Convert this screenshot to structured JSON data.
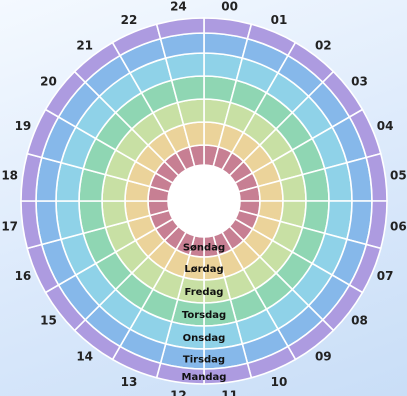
{
  "diagram": {
    "hour_labels": [
      "24",
      "00",
      "01",
      "02",
      "03",
      "04",
      "05",
      "06",
      "07",
      "08",
      "09",
      "10",
      "11",
      "12",
      "13",
      "14",
      "15",
      "16",
      "17",
      "18",
      "19",
      "20",
      "21",
      "22"
    ],
    "day_labels": [
      "Søndag",
      "Lørdag",
      "Fredag",
      "Torsdag",
      "Onsdag",
      "Tirsdag",
      "Mandag"
    ],
    "ring_colors": [
      "#c77f93",
      "#ebd39a",
      "#c8e0a4",
      "#8fd6b3",
      "#8fd2e8",
      "#86b8ea",
      "#ad9be0"
    ]
  }
}
